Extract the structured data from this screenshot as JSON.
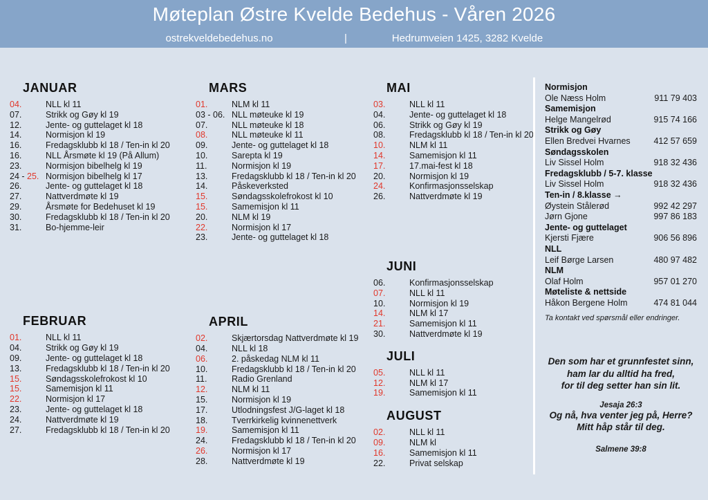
{
  "header": {
    "title": "Møteplan Østre Kvelde Bedehus - Våren 2026",
    "website": "ostrekveldebedehus.no",
    "pipe": "|",
    "address": "Hedrumveien 1425, 3282 Kvelde"
  },
  "colors": {
    "header_bg": "#86a5c9",
    "page_bg": "#dae2ec",
    "ink": "#1a1a1a",
    "highlight_red": "#e1372a",
    "divider": "#ffffff"
  },
  "calendar": {
    "columns": [
      {
        "months": [
          {
            "name": "JANUAR",
            "events": [
              {
                "date": "04.",
                "date_red": true,
                "text": "NLL kl 11"
              },
              {
                "date": "07.",
                "date_red": false,
                "text": "Strikk og Gøy kl 19"
              },
              {
                "date": "12.",
                "date_red": false,
                "text": "Jente- og guttelaget kl 18"
              },
              {
                "date": "14.",
                "date_red": false,
                "text": "Normisjon kl 19"
              },
              {
                "date": "16.",
                "date_red": false,
                "text": "Fredagsklubb kl 18 / Ten-in kl 20"
              },
              {
                "date": "16.",
                "date_red": false,
                "text": "NLL Årsmøte kl 19 (På Allum)"
              },
              {
                "date": "23.",
                "date_red": false,
                "text": "Normisjon bibelhelg kl 19"
              },
              {
                "date_prefix": "24 - ",
                "date": "25.",
                "date_red": true,
                "text": "Normisjon bibelhelg kl 17"
              },
              {
                "date": "26.",
                "date_red": false,
                "text": "Jente- og guttelaget kl 18"
              },
              {
                "date": "27.",
                "date_red": false,
                "text": "Nattverdmøte kl 19"
              },
              {
                "date": "29.",
                "date_red": false,
                "text": "Årsmøte for Bedehuset kl 19"
              },
              {
                "date": "30.",
                "date_red": false,
                "text": "Fredagsklubb kl 18 / Ten-in kl 20"
              },
              {
                "date": "31.",
                "date_red": false,
                "text": "Bo-hjemme-leir"
              }
            ]
          },
          {
            "name": "FEBRUAR",
            "events": [
              {
                "date": "01.",
                "date_red": true,
                "text": "NLL kl 11"
              },
              {
                "date": "04.",
                "date_red": false,
                "text": "Strikk og Gøy kl 19"
              },
              {
                "date": "09.",
                "date_red": false,
                "text": "Jente- og guttelaget kl 18"
              },
              {
                "date": "13.",
                "date_red": false,
                "text": "Fredagsklubb kl 18 / Ten-in kl 20"
              },
              {
                "date": "15.",
                "date_red": true,
                "text": "Søndagsskolefrokost kl 10"
              },
              {
                "date": "15.",
                "date_red": true,
                "text": "Samemisjon kl 11"
              },
              {
                "date": "22.",
                "date_red": true,
                "text": "Normisjon kl 17"
              },
              {
                "date": "23.",
                "date_red": false,
                "text": "Jente- og guttelaget kl 18"
              },
              {
                "date": "24.",
                "date_red": false,
                "text": "Nattverdmøte kl 19"
              },
              {
                "date": "27.",
                "date_red": false,
                "text": "Fredagsklubb kl 18 / Ten-in kl 20"
              }
            ]
          }
        ]
      },
      {
        "months": [
          {
            "name": "MARS",
            "events": [
              {
                "date": "01.",
                "date_red": true,
                "text": "NLM kl 11"
              },
              {
                "date": "03 - 06.",
                "date_red": false,
                "text": "NLL møteuke kl 19"
              },
              {
                "date": "07.",
                "date_red": false,
                "text": "NLL møteuke kl 18"
              },
              {
                "date": "08.",
                "date_red": true,
                "text": "NLL møteuke kl 11"
              },
              {
                "date": "09.",
                "date_red": false,
                "text": "Jente- og guttelaget kl 18"
              },
              {
                "date": "10.",
                "date_red": false,
                "text": "Sarepta kl 19"
              },
              {
                "date": "11.",
                "date_red": false,
                "text": "Normisjon kl 19"
              },
              {
                "date": "13.",
                "date_red": false,
                "text": "Fredagsklubb kl 18 / Ten-in kl 20"
              },
              {
                "date": "14.",
                "date_red": false,
                "text": "Påskeverksted"
              },
              {
                "date": "15.",
                "date_red": true,
                "text": "Søndagsskolefrokost kl 10"
              },
              {
                "date": "15.",
                "date_red": true,
                "text": "Samemisjon kl 11"
              },
              {
                "date": "20.",
                "date_red": false,
                "text": "NLM kl 19"
              },
              {
                "date": "22.",
                "date_red": true,
                "text": "Normisjon kl 17"
              },
              {
                "date": "23.",
                "date_red": false,
                "text": "Jente- og guttelaget kl 18"
              }
            ]
          },
          {
            "name": "APRIL",
            "events": [
              {
                "date": "02.",
                "date_red": true,
                "text": "Skjærtorsdag Nattverdmøte kl 19"
              },
              {
                "date": "04.",
                "date_red": false,
                "text": "NLL kl 18"
              },
              {
                "date": "06.",
                "date_red": true,
                "text": "2. påskedag NLM kl 11"
              },
              {
                "date": "10.",
                "date_red": false,
                "text": "Fredagsklubb kl 18 / Ten-in kl 20"
              },
              {
                "date": "11.",
                "date_red": false,
                "text": "Radio Grenland"
              },
              {
                "date": "12.",
                "date_red": true,
                "text": "NLM kl 11"
              },
              {
                "date": "15.",
                "date_red": false,
                "text": "Normisjon kl 19"
              },
              {
                "date": "17.",
                "date_red": false,
                "text": "Utlodningsfest J/G-laget kl 18"
              },
              {
                "date": "18.",
                "date_red": false,
                "text": "Tverrkirkelig kvinnenettverk"
              },
              {
                "date": "19.",
                "date_red": true,
                "text": "Samemisjon kl 11"
              },
              {
                "date": "24.",
                "date_red": false,
                "text": "Fredagsklubb kl 18 / Ten-in kl 20"
              },
              {
                "date": "26.",
                "date_red": true,
                "text": "Normisjon kl 17"
              },
              {
                "date": "28.",
                "date_red": false,
                "text": "Nattverdmøte kl 19"
              }
            ]
          }
        ]
      },
      {
        "months": [
          {
            "name": "MAI",
            "events": [
              {
                "date": "03.",
                "date_red": true,
                "text": "NLL kl 11"
              },
              {
                "date": "04.",
                "date_red": false,
                "text": "Jente- og guttelaget kl 18"
              },
              {
                "date": "06.",
                "date_red": false,
                "text": "Strikk og Gøy kl 19"
              },
              {
                "date": "08.",
                "date_red": false,
                "text": "Fredagsklubb kl 18 / Ten-in kl 20"
              },
              {
                "date": "10.",
                "date_red": true,
                "text": "NLM kl 11"
              },
              {
                "date": "14.",
                "date_red": true,
                "text": "Samemisjon kl 11"
              },
              {
                "date": "17.",
                "date_red": true,
                "text": "17.mai-fest kl 18"
              },
              {
                "date": "20.",
                "date_red": false,
                "text": "Normisjon kl 19"
              },
              {
                "date": "24.",
                "date_red": true,
                "text": "Konfirmasjonsselskap"
              },
              {
                "date": "26.",
                "date_red": false,
                "text": "Nattverdmøte kl 19"
              }
            ]
          },
          {
            "name": "JUNI",
            "events": [
              {
                "date": "06.",
                "date_red": false,
                "text": "Konfirmasjonsselskap"
              },
              {
                "date": "07.",
                "date_red": true,
                "text": "NLL kl 11"
              },
              {
                "date": "10.",
                "date_red": false,
                "text": "Normisjon kl 19"
              },
              {
                "date": "14.",
                "date_red": true,
                "text": "NLM kl 17"
              },
              {
                "date": "21.",
                "date_red": true,
                "text": "Samemisjon kl 11"
              },
              {
                "date": "30.",
                "date_red": false,
                "text": "Nattverdmøte kl 19"
              }
            ]
          },
          {
            "name": "JULI",
            "events": [
              {
                "date": "05.",
                "date_red": true,
                "text": "NLL kl 11"
              },
              {
                "date": "12.",
                "date_red": true,
                "text": "NLM kl 17"
              },
              {
                "date": "19.",
                "date_red": true,
                "text": "Samemisjon kl 11"
              }
            ]
          },
          {
            "name": "AUGUST",
            "events": [
              {
                "date": "02.",
                "date_red": true,
                "text": "NLL kl 11"
              },
              {
                "date": "09.",
                "date_red": true,
                "text": "NLM kl"
              },
              {
                "date": "16.",
                "date_red": true,
                "text": "Samemisjon kl 11"
              },
              {
                "date": "22.",
                "date_red": false,
                "text": "Privat selskap"
              }
            ]
          }
        ]
      }
    ]
  },
  "contacts": {
    "groups": [
      {
        "role": "Normisjon",
        "people": [
          {
            "name": "Ole Næss Holm",
            "phone": "911 79 403"
          }
        ]
      },
      {
        "role": "Samemisjon",
        "people": [
          {
            "name": "Helge Mangelrød",
            "phone": "915 74 166"
          }
        ]
      },
      {
        "role": "Strikk og Gøy",
        "people": [
          {
            "name": "Ellen Bredvei Hvarnes",
            "phone": "412 57 659"
          }
        ]
      },
      {
        "role": "Søndagsskolen",
        "people": [
          {
            "name": "Liv Sissel Holm",
            "phone": "918 32 436"
          }
        ]
      },
      {
        "role": "Fredagsklubb / 5-7. klasse",
        "people": [
          {
            "name": "Liv Sissel Holm",
            "phone": "918 32 436"
          }
        ]
      },
      {
        "role": "Ten-in / 8.klasse →",
        "people": [
          {
            "name": "Øystein Stålerød",
            "phone": "992 42 297"
          },
          {
            "name": "Jørn Gjone",
            "phone": "997 86 183"
          }
        ]
      },
      {
        "role": "Jente- og guttelaget",
        "people": [
          {
            "name": "Kjersti Fjære",
            "phone": "906 56 896"
          }
        ]
      },
      {
        "role": "NLL",
        "people": [
          {
            "name": "Leif Børge Larsen",
            "phone": "480 97 482"
          }
        ]
      },
      {
        "role": "NLM",
        "people": [
          {
            "name": "Olaf Holm",
            "phone": "957 01 270"
          }
        ]
      },
      {
        "role": "Møteliste & nettside",
        "people": [
          {
            "name": "Håkon Bergene Holm",
            "phone": "474 81 044"
          }
        ]
      }
    ],
    "note": "Ta kontakt ved spørsmål eller endringer."
  },
  "quotes": [
    {
      "lines": [
        "Den som har et grunnfestet sinn,",
        "ham lar du alltid ha fred,",
        "for til deg setter han sin lit."
      ],
      "ref": "Jesaja 26:3"
    },
    {
      "lines": [
        "Og nå, hva venter jeg på, Herre?",
        "Mitt håp står til deg."
      ],
      "ref": "Salmene 39:8"
    }
  ]
}
